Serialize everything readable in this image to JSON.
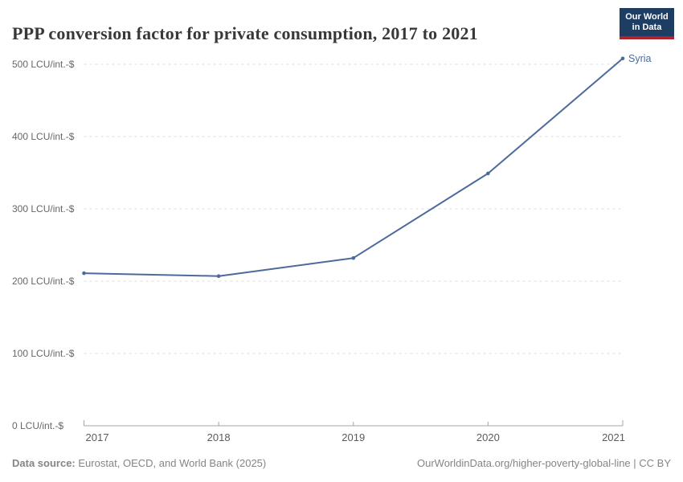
{
  "header": {
    "title": "PPP conversion factor for private consumption, 2017 to 2021",
    "logo": {
      "line1": "Our World",
      "line2": "in Data"
    }
  },
  "chart_data": {
    "type": "line",
    "title": "PPP conversion factor for private consumption, 2017 to 2021",
    "x": [
      2017,
      2018,
      2019,
      2020,
      2021
    ],
    "xtick_labels": [
      "2017",
      "2018",
      "2019",
      "2020",
      "2021"
    ],
    "series": [
      {
        "name": "Syria",
        "values": [
          211,
          207,
          232,
          349,
          508
        ]
      }
    ],
    "end_label": "Syria",
    "ylabel_unit": "LCU/int.-$",
    "ylim": [
      0,
      500
    ],
    "ytick_interval": 100,
    "ytick_labels": [
      "0 LCU/int.-$",
      "100 LCU/int.-$",
      "200 LCU/int.-$",
      "300 LCU/int.-$",
      "400 LCU/int.-$",
      "500 LCU/int.-$"
    ],
    "grid": "horizontal-dashed",
    "legend_position": "end-of-line"
  },
  "footer": {
    "source_label": "Data source:",
    "source_text": " Eurostat, OECD, and World Bank (2025)",
    "attribution": "OurWorldinData.org/higher-poverty-global-line | CC BY"
  },
  "colors": {
    "line": "#4c6a9c",
    "end_label": "#4c6a9c",
    "grid": "#dcdcdc",
    "axis": "#a5a5a5",
    "ytick_text": "#666666",
    "xtick_text": "#5b5b5b",
    "title_text": "#383838",
    "footer_text": "#858585",
    "logo_bg": "#1d3d63",
    "logo_red": "#b0232d"
  }
}
